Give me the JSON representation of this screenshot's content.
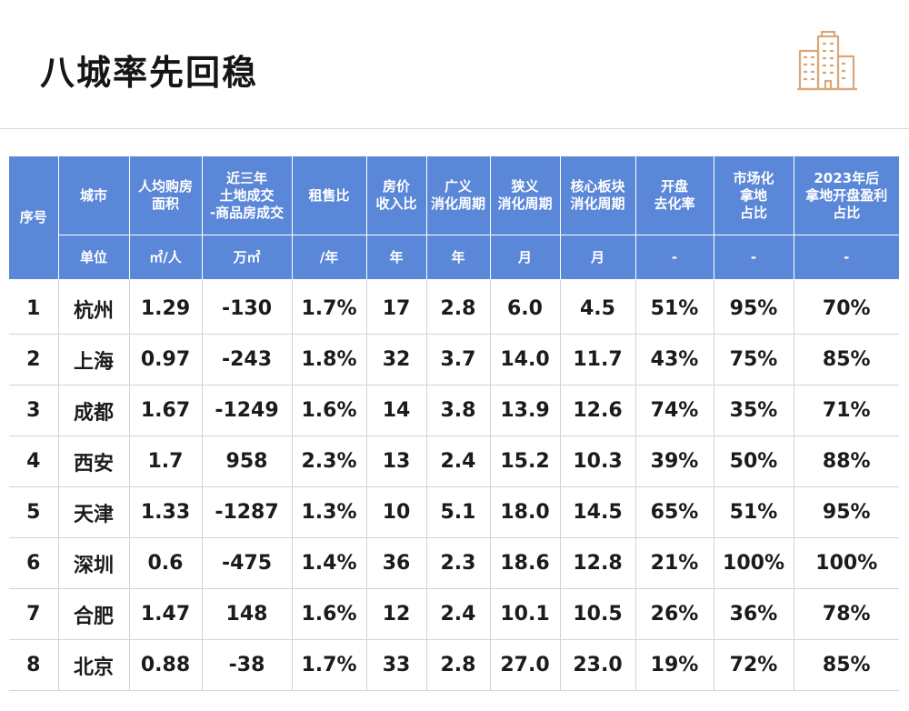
{
  "title": "八城率先回稳",
  "icon": "building-icon",
  "colors": {
    "header_bg": "#5b87d8",
    "header_text": "#ffffff",
    "icon": "#d9a77a"
  },
  "table": {
    "col_index": "序号",
    "headers": [
      "城市",
      "人均购房\n面积",
      "近三年\n土地成交\n-商品房成交",
      "租售比",
      "房价\n收入比",
      "广义\n消化周期",
      "狭义\n消化周期",
      "核心板块\n消化周期",
      "开盘\n去化率",
      "市场化\n拿地\n占比",
      "2023年后\n拿地开盘盈利\n占比"
    ],
    "units": [
      "单位",
      "㎡/人",
      "万㎡",
      "/年",
      "年",
      "年",
      "月",
      "月",
      "-",
      "-",
      "-"
    ],
    "rows": [
      [
        "1",
        "杭州",
        "1.29",
        "-130",
        "1.7%",
        "17",
        "2.8",
        "6.0",
        "4.5",
        "51%",
        "95%",
        "70%"
      ],
      [
        "2",
        "上海",
        "0.97",
        "-243",
        "1.8%",
        "32",
        "3.7",
        "14.0",
        "11.7",
        "43%",
        "75%",
        "85%"
      ],
      [
        "3",
        "成都",
        "1.67",
        "-1249",
        "1.6%",
        "14",
        "3.8",
        "13.9",
        "12.6",
        "74%",
        "35%",
        "71%"
      ],
      [
        "4",
        "西安",
        "1.7",
        "958",
        "2.3%",
        "13",
        "2.4",
        "15.2",
        "10.3",
        "39%",
        "50%",
        "88%"
      ],
      [
        "5",
        "天津",
        "1.33",
        "-1287",
        "1.3%",
        "10",
        "5.1",
        "18.0",
        "14.5",
        "65%",
        "51%",
        "95%"
      ],
      [
        "6",
        "深圳",
        "0.6",
        "-475",
        "1.4%",
        "36",
        "2.3",
        "18.6",
        "12.8",
        "21%",
        "100%",
        "100%"
      ],
      [
        "7",
        "合肥",
        "1.47",
        "148",
        "1.6%",
        "12",
        "2.4",
        "10.1",
        "10.5",
        "26%",
        "36%",
        "78%"
      ],
      [
        "8",
        "北京",
        "0.88",
        "-38",
        "1.7%",
        "33",
        "2.8",
        "27.0",
        "23.0",
        "19%",
        "72%",
        "85%"
      ]
    ]
  }
}
